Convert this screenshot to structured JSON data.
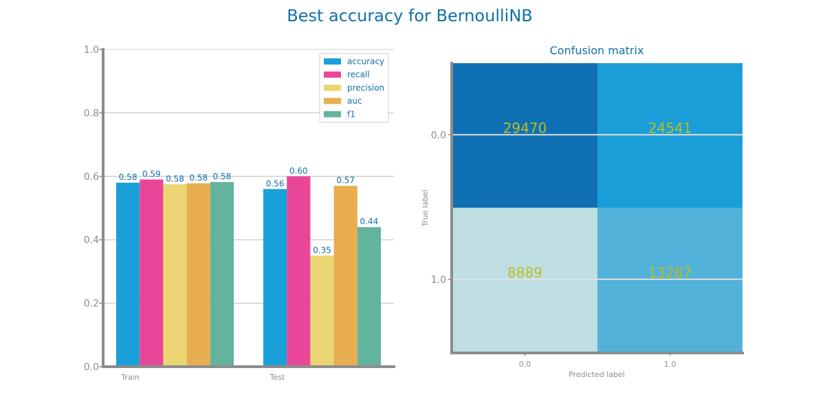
{
  "figure": {
    "title": "Best accuracy for BernoulliNB"
  },
  "colors": {
    "accuracy": "#1aa0d8",
    "recall": "#ea4698",
    "precision": "#ebd473",
    "auc": "#e8ad4f",
    "f1": "#63b39f",
    "text": "#1170aa",
    "axis": "#8c8c8c",
    "grid": "#cfcfcf",
    "cell_value": "#b8bf20"
  },
  "chart_data": [
    {
      "type": "bar",
      "categories": [
        "Train",
        "Test"
      ],
      "series": [
        {
          "name": "accuracy",
          "values": [
            0.58,
            0.56
          ]
        },
        {
          "name": "recall",
          "values": [
            0.59,
            0.6
          ]
        },
        {
          "name": "precision",
          "values": [
            0.575,
            0.35
          ]
        },
        {
          "name": "auc",
          "values": [
            0.578,
            0.57
          ]
        },
        {
          "name": "f1",
          "values": [
            0.582,
            0.44
          ]
        }
      ],
      "value_labels": [
        [
          "0.58",
          "0.56"
        ],
        [
          "0.59",
          "0.60"
        ],
        [
          "0.58",
          "0.35"
        ],
        [
          "0.58",
          "0.57"
        ],
        [
          "0.58",
          "0.44"
        ]
      ],
      "title": "",
      "xlabel": "",
      "ylabel": "",
      "ylim": [
        0,
        1.0
      ],
      "yticks": [
        "0.0",
        "0.2",
        "0.4",
        "0.6",
        "0.8",
        "1.0"
      ],
      "grid": true,
      "legend": "top-right"
    },
    {
      "type": "heatmap",
      "title": "Confusion matrix",
      "xlabel": "Predicted label",
      "ylabel": "True label",
      "x_categories": [
        "0.0",
        "1.0"
      ],
      "y_categories": [
        "0.0",
        "1.0"
      ],
      "values": [
        [
          29470,
          24541
        ],
        [
          8889,
          13287
        ]
      ],
      "cell_colors": [
        [
          "#0f6fb3",
          "#1b9ed7"
        ],
        [
          "#bfdee2",
          "#52b2da"
        ]
      ],
      "grid": true
    }
  ]
}
